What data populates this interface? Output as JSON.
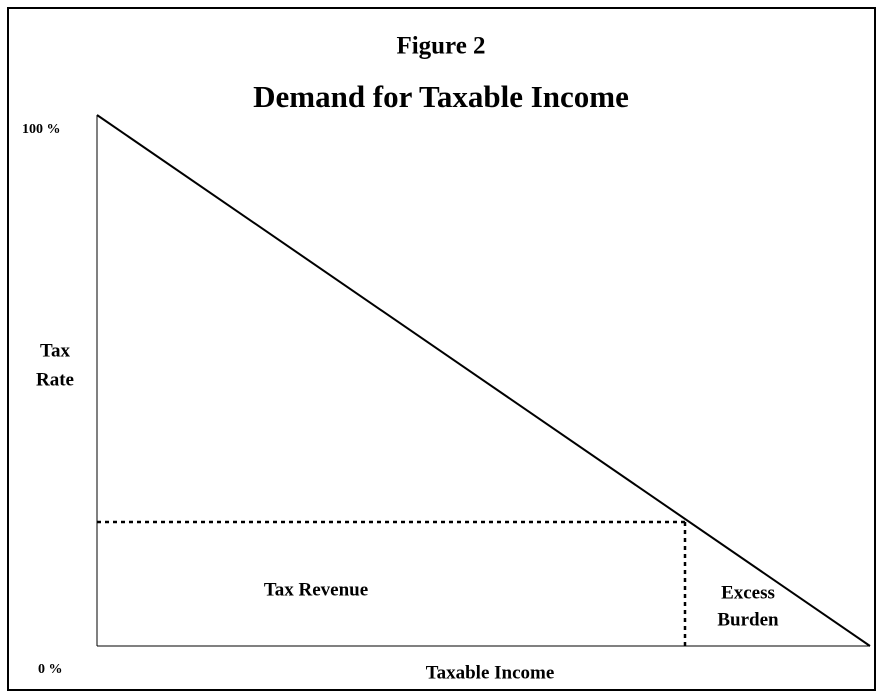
{
  "figure_label": "Figure 2",
  "title": "Demand for Taxable Income",
  "y_axis": {
    "top_label": "100 %",
    "bottom_label": "0 %",
    "label_lines": [
      "Tax",
      "Rate"
    ]
  },
  "x_axis": {
    "label": "Taxable Income"
  },
  "regions": {
    "revenue": "Tax Revenue",
    "excess_lines": [
      "Excess",
      "Burden"
    ]
  }
}
